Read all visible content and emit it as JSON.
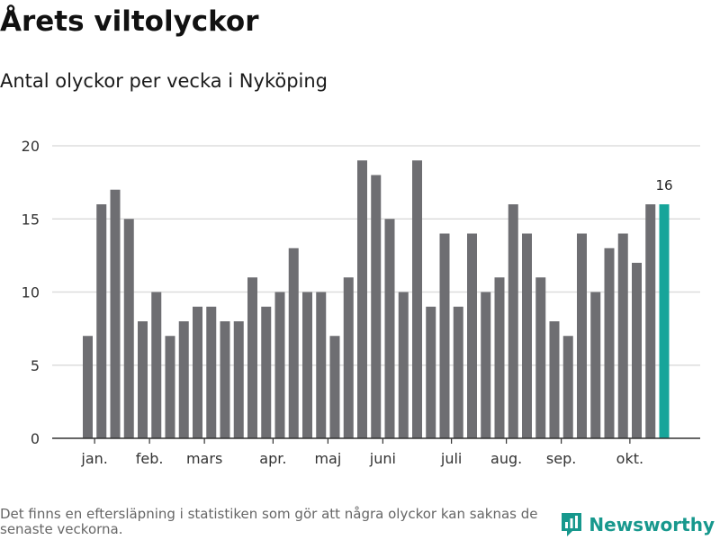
{
  "title": "Årets viltolyckor",
  "subtitle": "Antal olyckor per vecka i Nyköping",
  "footnote": "Det finns en eftersläpning i statistiken som gör att några olyckor kan saknas de senaste veckorna.",
  "brand": {
    "name": "Newsworthy",
    "color": "#17988d"
  },
  "colors": {
    "bar": "#6e6e72",
    "highlight": "#17a59a",
    "grid": "#dddddd",
    "axis": "#333333"
  },
  "chart_data": {
    "type": "bar",
    "values": [
      7,
      16,
      17,
      15,
      8,
      10,
      7,
      8,
      9,
      9,
      8,
      8,
      11,
      9,
      10,
      13,
      10,
      10,
      7,
      11,
      19,
      18,
      15,
      10,
      19,
      9,
      14,
      9,
      14,
      10,
      11,
      16,
      14,
      11,
      8,
      7,
      14,
      10,
      13,
      14,
      12,
      16,
      16
    ],
    "highlight_index": 42,
    "highlight_label": "16",
    "ylim": [
      0,
      20
    ],
    "yticks": [
      0,
      5,
      10,
      15,
      20
    ],
    "month_ticks": [
      {
        "label": "jan.",
        "index": 0.5
      },
      {
        "label": "feb.",
        "index": 4.5
      },
      {
        "label": "mars",
        "index": 8.5
      },
      {
        "label": "apr.",
        "index": 13.5
      },
      {
        "label": "maj",
        "index": 17.5
      },
      {
        "label": "juni",
        "index": 21.5
      },
      {
        "label": "juli",
        "index": 26.5
      },
      {
        "label": "aug.",
        "index": 30.5
      },
      {
        "label": "sep.",
        "index": 34.5
      },
      {
        "label": "okt.",
        "index": 39.5
      }
    ],
    "xlabel": "",
    "ylabel": "",
    "grid": true
  }
}
